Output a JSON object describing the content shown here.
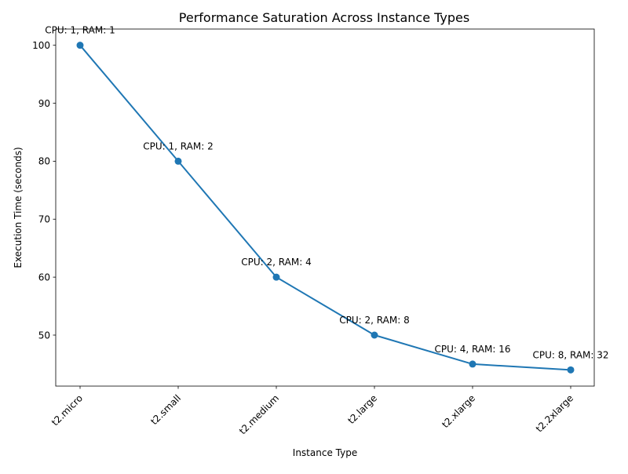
{
  "chart_data": {
    "type": "line",
    "title": "Performance Saturation Across Instance Types",
    "xlabel": "Instance Type",
    "ylabel": "Execution Time (seconds)",
    "categories": [
      "t2.micro",
      "t2.small",
      "t2.medium",
      "t2.large",
      "t2.xlarge",
      "t2.2xlarge"
    ],
    "series": [
      {
        "values": [
          100,
          80,
          60,
          50,
          45,
          44
        ],
        "color": "#1f77b4",
        "marker": "circle"
      }
    ],
    "annotations": [
      "CPU: 1, RAM: 1",
      "CPU: 1, RAM: 2",
      "CPU: 2, RAM: 4",
      "CPU: 2, RAM: 8",
      "CPU: 4, RAM: 16",
      "CPU: 8, RAM: 32"
    ],
    "ylim": [
      41.2,
      102.8
    ],
    "yticks": [
      50,
      60,
      70,
      80,
      90,
      100
    ],
    "grid": false,
    "legend": "none"
  }
}
